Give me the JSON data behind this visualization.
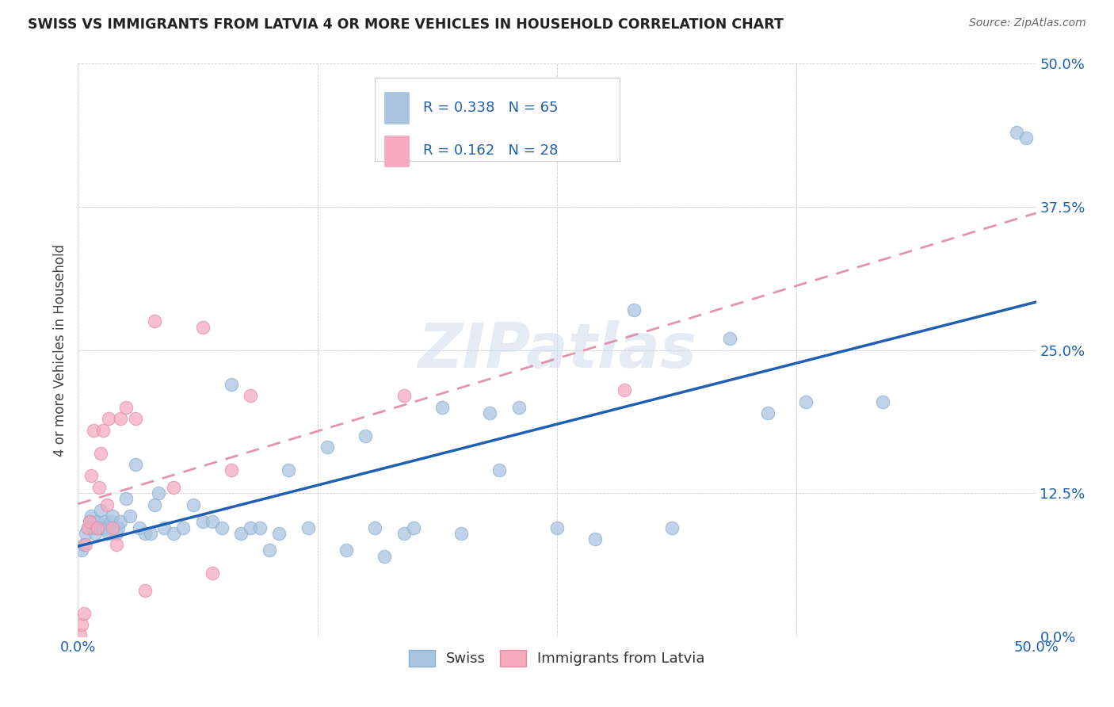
{
  "title": "SWISS VS IMMIGRANTS FROM LATVIA 4 OR MORE VEHICLES IN HOUSEHOLD CORRELATION CHART",
  "source": "Source: ZipAtlas.com",
  "ylabel": "4 or more Vehicles in Household",
  "R1": 0.338,
  "N1": 65,
  "R2": 0.162,
  "N2": 28,
  "color_swiss": "#aac4e0",
  "color_latvia": "#f5aabf",
  "color_line_swiss": "#2060b0",
  "color_line_latvia": "#e080a0",
  "xlim": [
    0.0,
    0.5
  ],
  "ylim": [
    0.0,
    0.5
  ],
  "watermark": "ZIPatlas",
  "background_color": "#ffffff",
  "swiss_x": [
    0.002,
    0.003,
    0.004,
    0.005,
    0.006,
    0.007,
    0.008,
    0.009,
    0.01,
    0.011,
    0.012,
    0.013,
    0.014,
    0.015,
    0.016,
    0.017,
    0.018,
    0.02,
    0.021,
    0.022,
    0.025,
    0.027,
    0.03,
    0.032,
    0.035,
    0.038,
    0.04,
    0.042,
    0.045,
    0.05,
    0.055,
    0.06,
    0.065,
    0.07,
    0.075,
    0.08,
    0.085,
    0.09,
    0.095,
    0.1,
    0.105,
    0.11,
    0.12,
    0.13,
    0.14,
    0.15,
    0.155,
    0.16,
    0.17,
    0.175,
    0.19,
    0.2,
    0.215,
    0.22,
    0.23,
    0.25,
    0.27,
    0.29,
    0.31,
    0.34,
    0.36,
    0.38,
    0.42,
    0.49,
    0.495
  ],
  "swiss_y": [
    0.075,
    0.08,
    0.09,
    0.095,
    0.1,
    0.105,
    0.095,
    0.09,
    0.1,
    0.095,
    0.11,
    0.095,
    0.1,
    0.095,
    0.09,
    0.1,
    0.105,
    0.09,
    0.095,
    0.1,
    0.12,
    0.105,
    0.15,
    0.095,
    0.09,
    0.09,
    0.115,
    0.125,
    0.095,
    0.09,
    0.095,
    0.115,
    0.1,
    0.1,
    0.095,
    0.22,
    0.09,
    0.095,
    0.095,
    0.075,
    0.09,
    0.145,
    0.095,
    0.165,
    0.075,
    0.175,
    0.095,
    0.07,
    0.09,
    0.095,
    0.2,
    0.09,
    0.195,
    0.145,
    0.2,
    0.095,
    0.085,
    0.285,
    0.095,
    0.26,
    0.195,
    0.205,
    0.205,
    0.44,
    0.435
  ],
  "latvia_x": [
    0.001,
    0.002,
    0.003,
    0.004,
    0.005,
    0.006,
    0.007,
    0.008,
    0.01,
    0.011,
    0.012,
    0.013,
    0.015,
    0.016,
    0.018,
    0.02,
    0.022,
    0.025,
    0.03,
    0.035,
    0.04,
    0.05,
    0.065,
    0.07,
    0.08,
    0.09,
    0.17,
    0.285
  ],
  "latvia_y": [
    0.001,
    0.01,
    0.02,
    0.08,
    0.095,
    0.1,
    0.14,
    0.18,
    0.095,
    0.13,
    0.16,
    0.18,
    0.115,
    0.19,
    0.095,
    0.08,
    0.19,
    0.2,
    0.19,
    0.04,
    0.275,
    0.13,
    0.27,
    0.055,
    0.145,
    0.21,
    0.21,
    0.215
  ]
}
